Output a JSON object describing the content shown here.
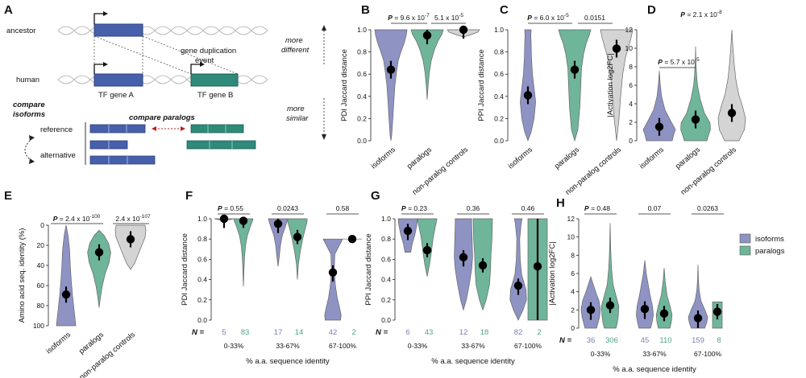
{
  "colors": {
    "isoform": "#8e93c4",
    "paralog": "#6fb59a",
    "control": "#d4d4d4",
    "blue_box": "#4660ab",
    "green_box": "#2f8a7a",
    "axis": "#222222",
    "n_iso": "#7a80b8",
    "n_par": "#4ea485"
  },
  "panel_A": {
    "letter": "A",
    "ancestor": "ancestor",
    "human": "human",
    "gene_dup": "gene duplication",
    "event": "event",
    "tf_a": "TF gene A",
    "tf_b": "TF gene B",
    "compare_iso_1": "compare",
    "compare_iso_2": "isoforms",
    "compare_paralogs": "compare paralogs",
    "reference": "reference",
    "alternative": "alternative"
  },
  "legend": {
    "isoforms": "isoforms",
    "paralogs": "paralogs"
  },
  "chart_data": [
    {
      "id": "B",
      "type": "violin",
      "ylabel": "PDI Jaccard distance",
      "ylim": [
        0,
        1.0
      ],
      "yticks": [
        "0.0",
        "0.2",
        "0.4",
        "0.6",
        "0.8",
        "1.0"
      ],
      "categories": [
        "isoforms",
        "paralogs",
        "non-paralog controls"
      ],
      "medians": [
        0.64,
        0.95,
        1.0
      ],
      "pvals": [
        {
          "P": "P = 9.6 x 10",
          "exp": "-7"
        },
        {
          "P": "5.1 x 10",
          "exp": "-5"
        }
      ],
      "annot_top_1": "more",
      "annot_top_2": "different",
      "annot_bot_1": "more",
      "annot_bot_2": "similar"
    },
    {
      "id": "C",
      "type": "violin",
      "ylabel": "PPI Jaccard distance",
      "ylim": [
        0,
        1.0
      ],
      "yticks": [
        "0.0",
        "0.2",
        "0.4",
        "0.6",
        "0.8",
        "1.0"
      ],
      "categories": [
        "isoforms",
        "paralogs",
        "non-paralog controls"
      ],
      "medians": [
        0.41,
        0.64,
        0.83
      ],
      "pvals": [
        {
          "P": "P = 6.0 x 10",
          "exp": "-5"
        },
        {
          "P": "0.0151",
          "exp": ""
        }
      ]
    },
    {
      "id": "D",
      "type": "violin",
      "ylabel": "|Activation log2FC|",
      "ylim": [
        0,
        12
      ],
      "yticks": [
        "0",
        "2",
        "4",
        "6",
        "8",
        "10",
        "12"
      ],
      "categories": [
        "isoforms",
        "paralogs",
        "non-paralog controls"
      ],
      "medians": [
        1.5,
        2.3,
        3.0
      ],
      "pvals": [
        {
          "P": "P = 5.7 x 10",
          "exp": "-5"
        },
        {
          "P": "P = 2.1 x 10",
          "exp": "-8"
        }
      ]
    },
    {
      "id": "E",
      "type": "violin",
      "ylabel": "Amino acid seq. identity (%)",
      "ylim": [
        0,
        100
      ],
      "inverted": true,
      "yticks": [
        "0",
        "20",
        "40",
        "60",
        "80",
        "100"
      ],
      "categories": [
        "isoforms",
        "paralogs",
        "non-paralog controls"
      ],
      "medians": [
        69,
        27,
        14
      ],
      "pvals": [
        {
          "P": "P = 2.4 x 10",
          "exp": "-100"
        },
        {
          "P": "2.4 x 10",
          "exp": "-107"
        }
      ]
    },
    {
      "id": "F",
      "type": "violin",
      "ylabel": "PDI Jaccard distance",
      "ylim": [
        0,
        1.0
      ],
      "yticks": [
        "0.0",
        "0.2",
        "0.4",
        "0.6",
        "0.8",
        "1.0"
      ],
      "xlabel": "% a.a. sequence identity",
      "groups": [
        "0-33%",
        "33-67%",
        "67-100%"
      ],
      "isoform_medians": [
        1.0,
        0.95,
        0.47
      ],
      "paralog_medians": [
        0.98,
        0.82,
        0.8
      ],
      "pvals": [
        "P = 0.55",
        "0.0243",
        "0.58"
      ],
      "n_label": "N =",
      "n_isoforms": [
        "5",
        "17",
        "42"
      ],
      "n_paralogs": [
        "83",
        "14",
        "2"
      ]
    },
    {
      "id": "G",
      "type": "violin",
      "ylabel": "PPI Jaccard distance",
      "ylim": [
        0,
        1.0
      ],
      "yticks": [
        "0.0",
        "0.2",
        "0.4",
        "0.6",
        "0.8",
        "1.0"
      ],
      "xlabel": "% a.a. sequence identity",
      "groups": [
        "0-33%",
        "33-67%",
        "67-100%"
      ],
      "isoform_medians": [
        0.88,
        0.62,
        0.34
      ],
      "paralog_medians": [
        0.69,
        0.54,
        0.53
      ],
      "pvals": [
        "P = 0.23",
        "0.36",
        "0.46"
      ],
      "n_label": "N =",
      "n_isoforms": [
        "6",
        "12",
        "82"
      ],
      "n_paralogs": [
        "43",
        "18",
        "2"
      ]
    },
    {
      "id": "H",
      "type": "violin",
      "ylabel": "|Activation log2FC|",
      "ylim": [
        0,
        12
      ],
      "yticks": [
        "0",
        "2",
        "4",
        "6",
        "8",
        "10",
        "12"
      ],
      "xlabel": "% a.a. sequence identity",
      "groups": [
        "0-33%",
        "33-67%",
        "67-100%"
      ],
      "isoform_medians": [
        2.0,
        2.1,
        1.1
      ],
      "paralog_medians": [
        2.5,
        1.6,
        1.8
      ],
      "pvals": [
        "P = 0.48",
        "0.07",
        "0.0263"
      ],
      "n_label": "N =",
      "n_isoforms": [
        "36",
        "45",
        "159"
      ],
      "n_paralogs": [
        "306",
        "110",
        "8"
      ]
    }
  ]
}
